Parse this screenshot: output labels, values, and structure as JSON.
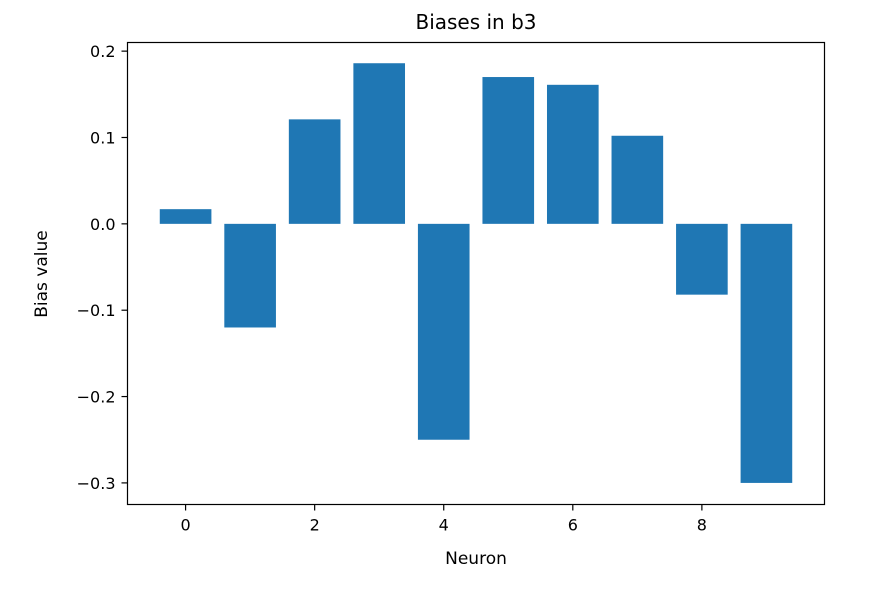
{
  "chart_data": {
    "type": "bar",
    "title": "Biases in b3",
    "xlabel": "Neuron",
    "ylabel": "Bias value",
    "categories": [
      0,
      1,
      2,
      3,
      4,
      5,
      6,
      7,
      8,
      9
    ],
    "values": [
      0.017,
      -0.12,
      0.121,
      0.186,
      -0.25,
      0.17,
      0.161,
      0.102,
      -0.082,
      -0.3
    ],
    "xlim": [
      -0.9,
      9.9
    ],
    "ylim": [
      -0.325,
      0.21
    ],
    "xticks": [
      0,
      2,
      4,
      6,
      8
    ],
    "xtick_labels": [
      "0",
      "2",
      "4",
      "6",
      "8"
    ],
    "yticks": [
      0.2,
      0.1,
      0.0,
      -0.1,
      -0.2,
      -0.3
    ],
    "ytick_labels": [
      "0.2",
      "0.1",
      "0.0",
      "−0.1",
      "−0.2",
      "−0.3"
    ],
    "bar_color": "#1f77b4",
    "grid": false,
    "legend": "none"
  }
}
